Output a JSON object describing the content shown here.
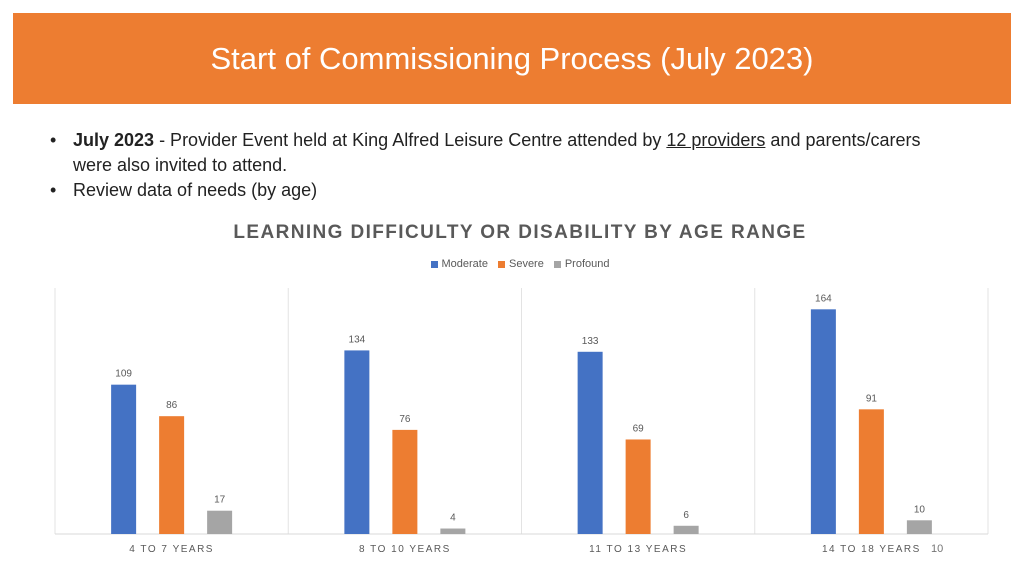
{
  "header": {
    "title": "Start of Commissioning Process (July 2023)",
    "banner_color": "#ED7D31"
  },
  "bullets": [
    {
      "bold": "July 2023",
      "text_before_link": " - Provider Event held at King Alfred Leisure Centre attended by ",
      "underlined": "12 providers",
      "text_after_link": " and parents/carers were also invited to attend."
    },
    {
      "text": "Review data of needs (by age)"
    }
  ],
  "chart_data": {
    "type": "bar",
    "title": "LEARNING DIFFICULTY OR DISABILITY BY AGE RANGE",
    "categories": [
      "4 TO 7 YEARS",
      "8 TO 10 YEARS",
      "11 TO 13 YEARS",
      "14 TO 18 YEARS"
    ],
    "series": [
      {
        "name": "Moderate",
        "color": "#4472C4",
        "values": [
          109,
          134,
          133,
          164
        ]
      },
      {
        "name": "Severe",
        "color": "#ED7D31",
        "values": [
          86,
          76,
          69,
          91
        ]
      },
      {
        "name": "Profound",
        "color": "#A5A5A5",
        "values": [
          17,
          4,
          6,
          10
        ]
      }
    ],
    "legend_position": "top",
    "ylim": [
      0,
      180
    ],
    "grid": false,
    "data_labels": true
  },
  "footer": {
    "slide_number": "10"
  }
}
